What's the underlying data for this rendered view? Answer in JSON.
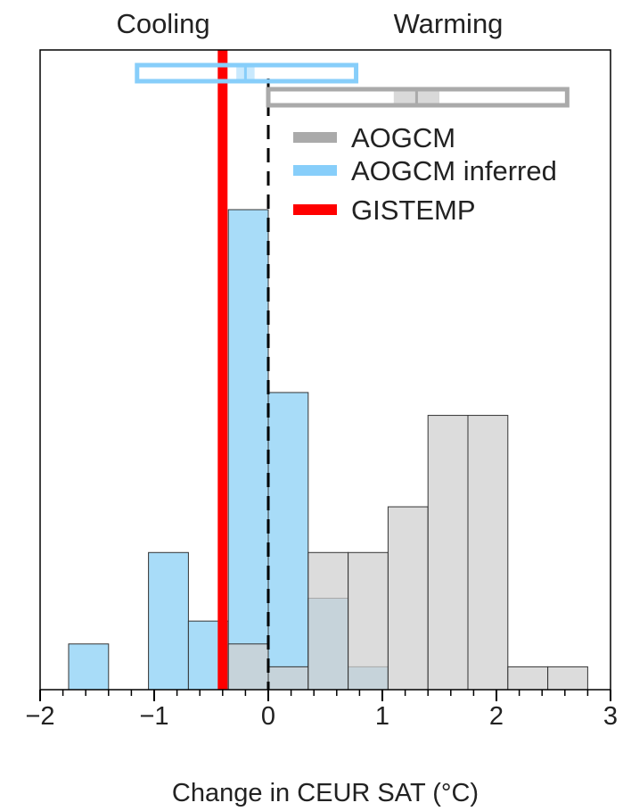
{
  "chart_data": {
    "type": "histogram",
    "title": "",
    "xlabel": "Change in CEUR SAT (°C)",
    "ylabel": "",
    "xlim": [
      -2,
      3
    ],
    "xticks": [
      -2,
      -1,
      0,
      1,
      2,
      3
    ],
    "xtick_labels": [
      "−2",
      "−1",
      "0",
      "1",
      "2",
      "3"
    ],
    "region_labels": {
      "left": "Cooling",
      "right": "Warming"
    },
    "legend": {
      "placement": "upper-right",
      "entries": [
        {
          "label": "AOGCM",
          "color": "#aaaaaa"
        },
        {
          "label": "AOGCM inferred",
          "color": "#87cefa"
        },
        {
          "label": "GISTEMP",
          "color": "#ff0000"
        }
      ]
    },
    "series": [
      {
        "name": "AOGCM",
        "color": "#d0d0d0",
        "bins": [
          {
            "x0": -0.35,
            "x1": 0.0,
            "count": 2
          },
          {
            "x0": 0.0,
            "x1": 0.35,
            "count": 1
          },
          {
            "x0": 0.35,
            "x1": 0.7,
            "count": 6
          },
          {
            "x0": 0.7,
            "x1": 1.05,
            "count": 6
          },
          {
            "x0": 1.05,
            "x1": 1.4,
            "count": 8
          },
          {
            "x0": 1.4,
            "x1": 1.75,
            "count": 12
          },
          {
            "x0": 1.75,
            "x1": 2.1,
            "count": 12
          },
          {
            "x0": 2.1,
            "x1": 2.45,
            "count": 1
          },
          {
            "x0": 2.45,
            "x1": 2.8,
            "count": 1
          }
        ]
      },
      {
        "name": "AOGCM inferred",
        "color": "#a8dcf8",
        "bins": [
          {
            "x0": -1.75,
            "x1": -1.4,
            "count": 2
          },
          {
            "x0": -1.05,
            "x1": -0.7,
            "count": 6
          },
          {
            "x0": -0.7,
            "x1": -0.35,
            "count": 3
          },
          {
            "x0": -0.35,
            "x1": 0.0,
            "count": 21
          },
          {
            "x0": 0.0,
            "x1": 0.35,
            "count": 13
          },
          {
            "x0": 0.35,
            "x1": 0.7,
            "count": 4
          },
          {
            "x0": 0.7,
            "x1": 1.05,
            "count": 1
          }
        ]
      }
    ],
    "ymax": 28,
    "gistemp_value": -0.4,
    "zero_line": 0,
    "range_bars": [
      {
        "name": "AOGCM inferred",
        "color": "#87cefa",
        "low": -1.15,
        "high": 0.77,
        "center": -0.2,
        "center_halfwidth": 0.08
      },
      {
        "name": "AOGCM",
        "color": "#aaaaaa",
        "low": 0.0,
        "high": 2.62,
        "center": 1.3,
        "center_halfwidth": 0.2
      }
    ]
  }
}
